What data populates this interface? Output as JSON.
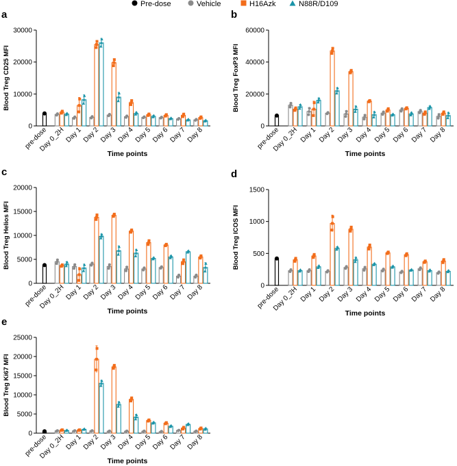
{
  "legend": [
    {
      "label": "Pre-dose",
      "color": "#000000",
      "marker": "circle-icon"
    },
    {
      "label": "Vehicle",
      "color": "#8a8a8a",
      "marker": "circle-icon"
    },
    {
      "label": "H16Azk",
      "color": "#f26d1b",
      "marker": "square-icon"
    },
    {
      "label": "N88R/D109",
      "color": "#1a94a8",
      "marker": "triangle-icon"
    }
  ],
  "chart_data": [
    {
      "panel_label": "a",
      "type": "bar",
      "ylabel": "Blood Treg CD25 MFI",
      "xlabel": "Time points",
      "ylim": [
        0,
        30000
      ],
      "yticks": [
        0,
        10000,
        20000,
        30000
      ],
      "categories": [
        "pre-dose",
        "Day 0_2H",
        "Day 1",
        "Day 2",
        "Day 3",
        "Day 4",
        "Day 5",
        "Day 6",
        "Day 7",
        "Day 8"
      ],
      "predose": 3900,
      "series": [
        {
          "name": "Vehicle",
          "values": [
            null,
            3600,
            2600,
            2700,
            3400,
            2900,
            2700,
            2600,
            2200,
            1900
          ],
          "errors": [
            null,
            300,
            300,
            300,
            300,
            300,
            200,
            200,
            200,
            200
          ]
        },
        {
          "name": "H16Azk",
          "values": [
            null,
            4300,
            6400,
            25500,
            19800,
            7300,
            3500,
            3300,
            3300,
            2600
          ],
          "errors": [
            null,
            400,
            2500,
            1200,
            1200,
            800,
            300,
            300,
            500,
            300
          ]
        },
        {
          "name": "N88R/D109",
          "values": [
            null,
            3700,
            8200,
            26000,
            9000,
            3900,
            3000,
            2300,
            1900,
            1600
          ],
          "errors": [
            null,
            300,
            1500,
            1400,
            1500,
            400,
            300,
            200,
            200,
            200
          ]
        }
      ]
    },
    {
      "panel_label": "b",
      "type": "bar",
      "ylabel": "Blood Treg FoxP3 MFI",
      "xlabel": "Time points",
      "ylim": [
        0,
        60000
      ],
      "yticks": [
        0,
        20000,
        40000,
        60000
      ],
      "categories": [
        "pre-dose",
        "Day 0_2H",
        "Day 1",
        "Day 2",
        "Day 3",
        "Day 4",
        "Day 5",
        "Day 6",
        "Day 7",
        "Day 8"
      ],
      "predose": 6500,
      "series": [
        {
          "name": "Vehicle",
          "values": [
            null,
            13000,
            9000,
            8000,
            7500,
            5500,
            8000,
            10000,
            9000,
            6000
          ],
          "errors": [
            null,
            1500,
            2500,
            500,
            2000,
            1500,
            1000,
            1000,
            1000,
            1500
          ]
        },
        {
          "name": "H16Azk",
          "values": [
            null,
            10500,
            10500,
            47000,
            34000,
            15500,
            10000,
            11000,
            8000,
            8000
          ],
          "errors": [
            null,
            1000,
            5000,
            2000,
            1000,
            500,
            1000,
            500,
            1000,
            1000
          ]
        },
        {
          "name": "N88R/D109",
          "values": [
            null,
            12000,
            16000,
            22000,
            10500,
            7000,
            7000,
            7500,
            11500,
            6500
          ],
          "errors": [
            null,
            1500,
            1500,
            2000,
            2000,
            2000,
            500,
            1000,
            1000,
            2000
          ]
        }
      ]
    },
    {
      "panel_label": "c",
      "type": "bar",
      "ylabel": "Blood Treg Helios MFI",
      "xlabel": "Time points",
      "ylim": [
        0,
        20000
      ],
      "yticks": [
        0,
        5000,
        10000,
        15000,
        20000
      ],
      "categories": [
        "pre-dose",
        "Day 0_2H",
        "Day 1",
        "Day 2",
        "Day 3",
        "Day 4",
        "Day 5",
        "Day 6",
        "Day 7",
        "Day 8"
      ],
      "predose": 3800,
      "series": [
        {
          "name": "Vehicle",
          "values": [
            null,
            4500,
            3500,
            4000,
            3500,
            3000,
            3000,
            3300,
            1500,
            1500
          ],
          "errors": [
            null,
            500,
            500,
            300,
            500,
            500,
            300,
            200,
            300,
            300
          ]
        },
        {
          "name": "H16Azk",
          "values": [
            null,
            3700,
            1800,
            13800,
            14200,
            10900,
            8500,
            8000,
            4500,
            5500
          ],
          "errors": [
            null,
            200,
            1500,
            600,
            300,
            300,
            500,
            200,
            500,
            300
          ]
        },
        {
          "name": "N88R/D109",
          "values": [
            null,
            4000,
            3200,
            9800,
            6800,
            6300,
            5200,
            5500,
            6600,
            3300
          ],
          "errors": [
            null,
            500,
            800,
            500,
            1000,
            800,
            200,
            300,
            200,
            1000
          ]
        }
      ]
    },
    {
      "panel_label": "d",
      "type": "bar",
      "ylabel": "Blood Treg ICOS MFI",
      "xlabel": "Time points",
      "ylim": [
        0,
        1500
      ],
      "yticks": [
        0,
        500,
        1000,
        1500
      ],
      "categories": [
        "pre-dose",
        "Day 0_2H",
        "Day 1",
        "Day 2",
        "Day 3",
        "Day 4",
        "Day 5",
        "Day 6",
        "Day 7",
        "Day 8"
      ],
      "predose": 420,
      "series": [
        {
          "name": "Vehicle",
          "values": [
            null,
            230,
            230,
            220,
            280,
            260,
            240,
            210,
            260,
            200
          ],
          "errors": [
            null,
            20,
            20,
            15,
            20,
            30,
            20,
            15,
            20,
            15
          ]
        },
        {
          "name": "H16Azk",
          "values": [
            null,
            400,
            460,
            970,
            880,
            600,
            510,
            480,
            370,
            380
          ],
          "errors": [
            null,
            30,
            30,
            130,
            40,
            40,
            15,
            20,
            15,
            30
          ]
        },
        {
          "name": "N88R/D109",
          "values": [
            null,
            230,
            290,
            580,
            400,
            330,
            290,
            240,
            230,
            220
          ],
          "errors": [
            null,
            15,
            20,
            25,
            40,
            15,
            15,
            10,
            15,
            15
          ]
        }
      ]
    },
    {
      "panel_label": "e",
      "type": "bar",
      "ylabel": "Blood Treg Ki67 MFI",
      "xlabel": "Time points",
      "ylim": [
        0,
        25000
      ],
      "yticks": [
        0,
        5000,
        10000,
        15000,
        20000,
        25000
      ],
      "categories": [
        "pre-dose",
        "Day 0_2H",
        "Day 1",
        "Day 2",
        "Day 3",
        "Day 4",
        "Day 5",
        "Day 6",
        "Day 7",
        "Day 8"
      ],
      "predose": 500,
      "series": [
        {
          "name": "Vehicle",
          "values": [
            null,
            600,
            600,
            600,
            500,
            500,
            500,
            400,
            700,
            500
          ],
          "errors": [
            null,
            100,
            100,
            100,
            100,
            100,
            100,
            100,
            100,
            100
          ]
        },
        {
          "name": "H16Azk",
          "values": [
            null,
            800,
            800,
            19300,
            17300,
            8800,
            3300,
            2600,
            1300,
            1200
          ],
          "errors": [
            null,
            100,
            100,
            3500,
            500,
            500,
            200,
            200,
            300,
            200
          ]
        },
        {
          "name": "N88R/D109",
          "values": [
            null,
            700,
            1000,
            13000,
            7500,
            4200,
            2700,
            1800,
            2300,
            1100
          ],
          "errors": [
            null,
            100,
            100,
            800,
            700,
            700,
            200,
            200,
            200,
            200
          ]
        }
      ]
    }
  ]
}
